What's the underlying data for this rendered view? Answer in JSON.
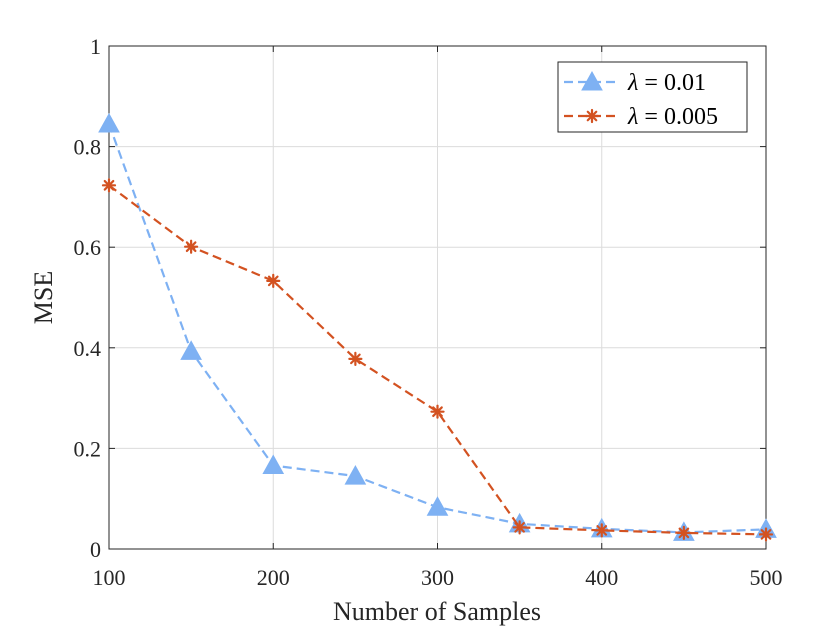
{
  "chart_data": {
    "type": "line",
    "title": "",
    "xlabel": "Number of Samples",
    "ylabel": "MSE",
    "xlim": [
      100,
      500
    ],
    "ylim": [
      0,
      1
    ],
    "x_ticks": [
      100,
      200,
      300,
      400,
      500
    ],
    "y_ticks": [
      0,
      0.2,
      0.4,
      0.6,
      0.8,
      1
    ],
    "y_tick_labels": [
      "0",
      "0.2",
      "0.4",
      "0.6",
      "0.8",
      "1"
    ],
    "grid": true,
    "legend_position": "top-right",
    "x": [
      100,
      150,
      200,
      250,
      300,
      350,
      400,
      450,
      500
    ],
    "series": [
      {
        "name": "λ = 0.01",
        "symbol": "λ",
        "value_label": " = 0.01",
        "color": "#7eb1f3",
        "marker": "triangle",
        "linestyle": "dashed",
        "values": [
          0.845,
          0.393,
          0.166,
          0.145,
          0.083,
          0.05,
          0.04,
          0.033,
          0.039
        ]
      },
      {
        "name": "λ = 0.005",
        "symbol": "λ",
        "value_label": " = 0.005",
        "color": "#d35221",
        "marker": "asterisk",
        "linestyle": "dashed",
        "values": [
          0.723,
          0.601,
          0.533,
          0.378,
          0.273,
          0.043,
          0.037,
          0.032,
          0.029
        ]
      }
    ]
  }
}
